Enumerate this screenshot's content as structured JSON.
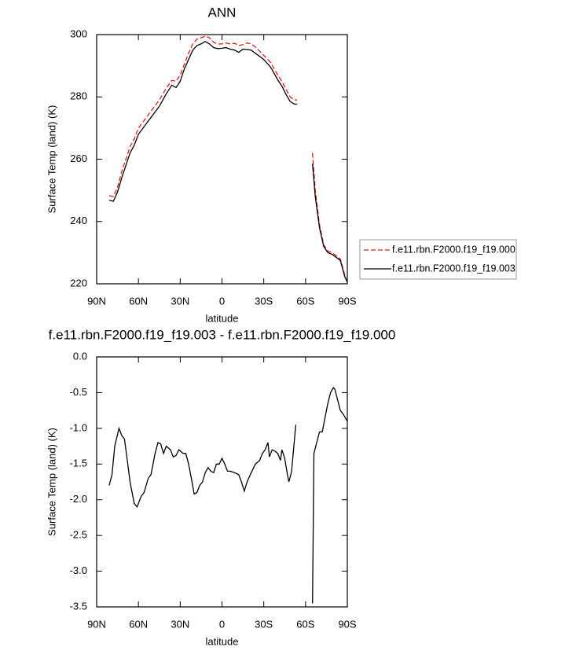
{
  "chart_data": [
    {
      "type": "line",
      "title": "ANN",
      "xlabel": "latitude",
      "ylabel": "Surface Temp (land) (K)",
      "x": [
        81,
        78,
        75,
        72,
        69,
        66,
        63,
        60,
        55,
        50,
        45,
        40,
        36,
        33,
        30,
        27,
        24,
        21,
        18,
        15,
        12,
        9,
        6,
        3,
        0,
        -3,
        -6,
        -9,
        -12,
        -15,
        -18,
        -21,
        -24,
        -27,
        -30,
        -35,
        -40,
        -43,
        -46,
        -49,
        -52,
        -54,
        -60,
        -65,
        -67,
        -70,
        -73,
        -76,
        -79,
        -82,
        -85,
        -88,
        -90
      ],
      "series": [
        {
          "name": "f.e11.rbn.F2000.f19_f19.000",
          "color": "#e31a1c",
          "line_style": "dashed",
          "values": [
            248.3,
            248,
            251,
            256,
            260,
            264,
            266.5,
            270,
            273,
            276,
            279,
            282.8,
            285.3,
            285,
            287,
            290.5,
            294,
            297,
            298.5,
            299,
            299.5,
            299,
            297.5,
            297,
            297,
            297.3,
            297,
            297.2,
            296.5,
            296.8,
            297.3,
            297,
            296,
            294.7,
            293.3,
            291,
            287,
            285,
            282.5,
            280,
            279,
            279,
            null,
            262,
            250,
            239,
            232.5,
            230.5,
            230,
            229,
            228,
            223,
            220.3
          ]
        },
        {
          "name": "f.e11.rbn.F2000.f19_f19.003",
          "color": "#000000",
          "line_style": "solid",
          "values": [
            246.8,
            246.5,
            249.5,
            254,
            258,
            262,
            264.5,
            268,
            271,
            274,
            277,
            281,
            283.8,
            283,
            285,
            289,
            292,
            295,
            296.5,
            297,
            297.8,
            297,
            295.8,
            295.5,
            295.6,
            295.8,
            295.3,
            295,
            294.3,
            295.3,
            295.2,
            295,
            294,
            293,
            292,
            289.5,
            285.5,
            283.5,
            280.8,
            278.5,
            277.7,
            277.7,
            null,
            258.5,
            248,
            238,
            232,
            230,
            229.5,
            228.5,
            227.5,
            222.5,
            220.5
          ]
        }
      ],
      "xlim": [
        90,
        -90
      ],
      "xticks": [
        {
          "value": 90,
          "label": "90N"
        },
        {
          "value": 60,
          "label": "60N"
        },
        {
          "value": 30,
          "label": "30N"
        },
        0,
        {
          "value": -30,
          "label": "30S"
        },
        {
          "value": -60,
          "label": "60S"
        },
        {
          "value": -90,
          "label": "90S"
        }
      ],
      "ylim": [
        220,
        300
      ],
      "yticks": [
        220,
        240,
        260,
        280,
        300
      ],
      "legend": "right"
    },
    {
      "type": "line",
      "title": "f.e11.rbn.F2000.f19_f19.003 - f.e11.rbn.F2000.f19_f19.000",
      "xlabel": "latitude",
      "ylabel": "Surface Temp (land) (K)",
      "x": [
        81,
        79,
        77,
        74,
        72,
        70,
        68,
        66,
        63,
        61,
        58,
        56,
        53,
        51,
        48,
        46,
        44,
        42,
        40,
        37,
        35,
        33,
        31,
        28,
        26,
        24,
        22,
        20,
        18,
        16,
        14,
        12,
        10,
        8,
        6,
        4,
        2,
        0,
        -2,
        -4,
        -6,
        -9,
        -12,
        -14,
        -16,
        -18,
        -21,
        -24,
        -27,
        -29,
        -31,
        -33,
        -34,
        -36,
        -38,
        -40,
        -42,
        -43,
        -45,
        -47,
        -48,
        -50,
        -53,
        -60,
        -65,
        -66,
        -68,
        -70,
        -72,
        -74,
        -76,
        -78,
        -80,
        -81,
        -83,
        -85,
        -87,
        -90
      ],
      "values": [
        -1.8,
        -1.65,
        -1.25,
        -1.0,
        -1.1,
        -1.15,
        -1.45,
        -1.75,
        -2.05,
        -2.1,
        -1.95,
        -1.9,
        -1.7,
        -1.65,
        -1.35,
        -1.2,
        -1.22,
        -1.35,
        -1.25,
        -1.3,
        -1.4,
        -1.38,
        -1.3,
        -1.35,
        -1.35,
        -1.5,
        -1.7,
        -1.92,
        -1.9,
        -1.8,
        -1.75,
        -1.62,
        -1.55,
        -1.6,
        -1.62,
        -1.5,
        -1.5,
        -1.42,
        -1.5,
        -1.6,
        -1.6,
        -1.62,
        -1.65,
        -1.75,
        -1.88,
        -1.75,
        -1.62,
        -1.5,
        -1.45,
        -1.35,
        -1.3,
        -1.2,
        -1.4,
        -1.3,
        -1.32,
        -1.35,
        -1.45,
        -1.3,
        -1.42,
        -1.65,
        -1.75,
        -1.6,
        -0.95,
        null,
        -3.45,
        -1.35,
        -1.2,
        -1.05,
        -1.05,
        -0.85,
        -0.65,
        -0.5,
        -0.43,
        -0.45,
        -0.6,
        -0.75,
        -0.8,
        -0.9
      ],
      "color": "#000000",
      "xlim": [
        90,
        -90
      ],
      "xticks": [
        {
          "value": 90,
          "label": "90N"
        },
        {
          "value": 60,
          "label": "60N"
        },
        {
          "value": 30,
          "label": "30N"
        },
        0,
        {
          "value": -30,
          "label": "30S"
        },
        {
          "value": -60,
          "label": "60S"
        },
        {
          "value": -90,
          "label": "90S"
        }
      ],
      "ylim": [
        -3.5,
        0
      ],
      "yticks": [
        {
          "value": 0,
          "label": "0.0"
        },
        -0.5,
        {
          "value": -1,
          "label": "-1.0"
        },
        -1.5,
        {
          "value": -2,
          "label": "-2.0"
        },
        -2.5,
        {
          "value": -3,
          "label": "-3.0"
        },
        -3.5
      ]
    }
  ]
}
